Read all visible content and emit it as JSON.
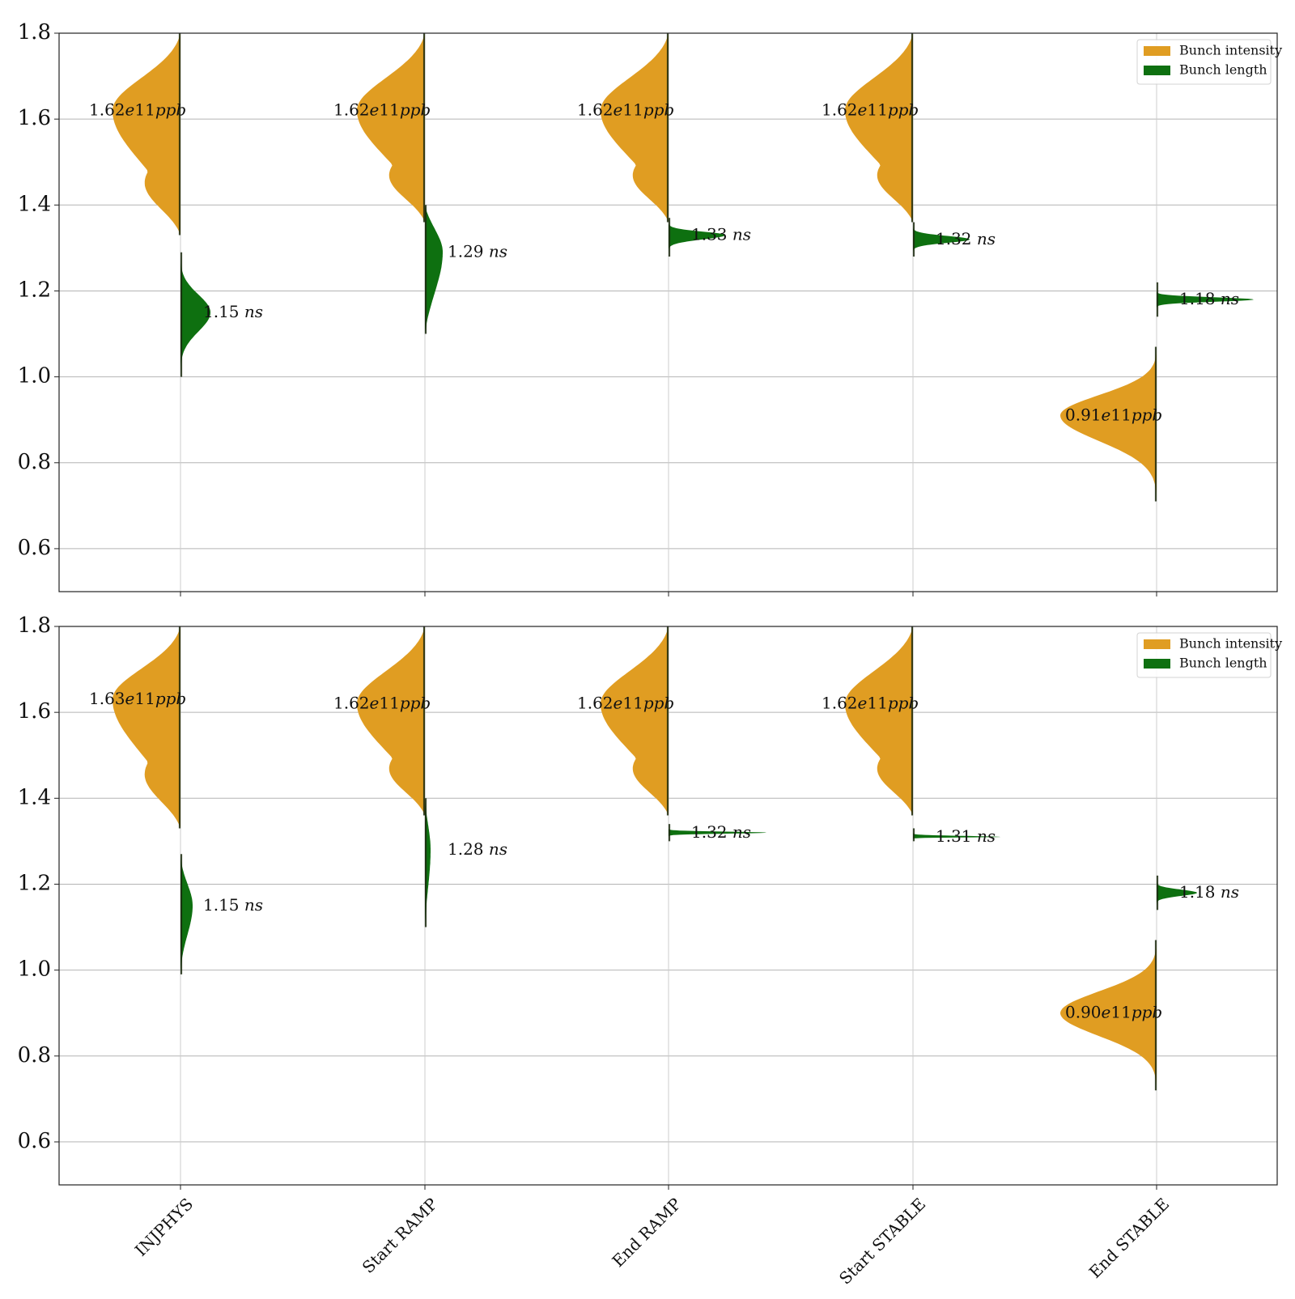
{
  "colors": {
    "intensity": "#E09D22",
    "length": "#0E7010",
    "axes": "#222222",
    "grid": "#b4b4b4",
    "stem": "#cccccc"
  },
  "chart_data": [
    {
      "type": "violin",
      "ylim": [
        0.5,
        1.8
      ],
      "yticks": [
        "0.6",
        "0.8",
        "1.0",
        "1.2",
        "1.4",
        "1.6",
        "1.8"
      ],
      "grid": "horizontal",
      "legend": {
        "position": "top-right",
        "entries": [
          "Bunch intensity",
          "Bunch length"
        ]
      },
      "categories": [
        "INJPHYS",
        "Start RAMP",
        "End RAMP",
        "Start STABLE",
        "End STABLE"
      ],
      "series": [
        {
          "name": "Bunch intensity",
          "side": "left",
          "center": [
            1.62,
            1.62,
            1.62,
            1.62,
            0.91
          ],
          "range": [
            [
              1.33,
              1.8
            ],
            [
              1.36,
              1.8
            ],
            [
              1.36,
              1.8
            ],
            [
              1.36,
              1.8
            ],
            [
              0.71,
              1.07
            ]
          ],
          "labels": [
            "1.62e11ppb",
            "1.62e11ppb",
            "1.62e11ppb",
            "1.62e11ppb",
            "0.91e11ppb"
          ]
        },
        {
          "name": "Bunch length",
          "side": "right",
          "center": [
            1.15,
            1.29,
            1.33,
            1.32,
            1.18
          ],
          "range": [
            [
              1.0,
              1.29
            ],
            [
              1.1,
              1.4
            ],
            [
              1.28,
              1.37
            ],
            [
              1.28,
              1.36
            ],
            [
              1.14,
              1.22
            ]
          ],
          "labels": [
            "1.15 ns",
            "1.29 ns",
            "1.33 ns",
            "1.32 ns",
            "1.18 ns"
          ]
        }
      ]
    },
    {
      "type": "violin",
      "ylim": [
        0.5,
        1.8
      ],
      "yticks": [
        "0.6",
        "0.8",
        "1.0",
        "1.2",
        "1.4",
        "1.6",
        "1.8"
      ],
      "grid": "horizontal",
      "legend": {
        "position": "top-right",
        "entries": [
          "Bunch intensity",
          "Bunch length"
        ]
      },
      "categories": [
        "INJPHYS",
        "Start RAMP",
        "End RAMP",
        "Start STABLE",
        "End STABLE"
      ],
      "series": [
        {
          "name": "Bunch intensity",
          "side": "left",
          "center": [
            1.63,
            1.62,
            1.62,
            1.62,
            0.9
          ],
          "range": [
            [
              1.33,
              1.8
            ],
            [
              1.36,
              1.8
            ],
            [
              1.36,
              1.8
            ],
            [
              1.36,
              1.8
            ],
            [
              0.72,
              1.07
            ]
          ],
          "labels": [
            "1.63e11ppb",
            "1.62e11ppb",
            "1.62e11ppb",
            "1.62e11ppb",
            "0.90e11ppb"
          ]
        },
        {
          "name": "Bunch length",
          "side": "right",
          "center": [
            1.15,
            1.28,
            1.32,
            1.31,
            1.18
          ],
          "range": [
            [
              0.99,
              1.27
            ],
            [
              1.1,
              1.4
            ],
            [
              1.3,
              1.34
            ],
            [
              1.3,
              1.33
            ],
            [
              1.14,
              1.22
            ]
          ],
          "labels": [
            "1.15 ns",
            "1.28 ns",
            "1.32 ns",
            "1.31 ns",
            "1.18 ns"
          ]
        }
      ]
    }
  ]
}
